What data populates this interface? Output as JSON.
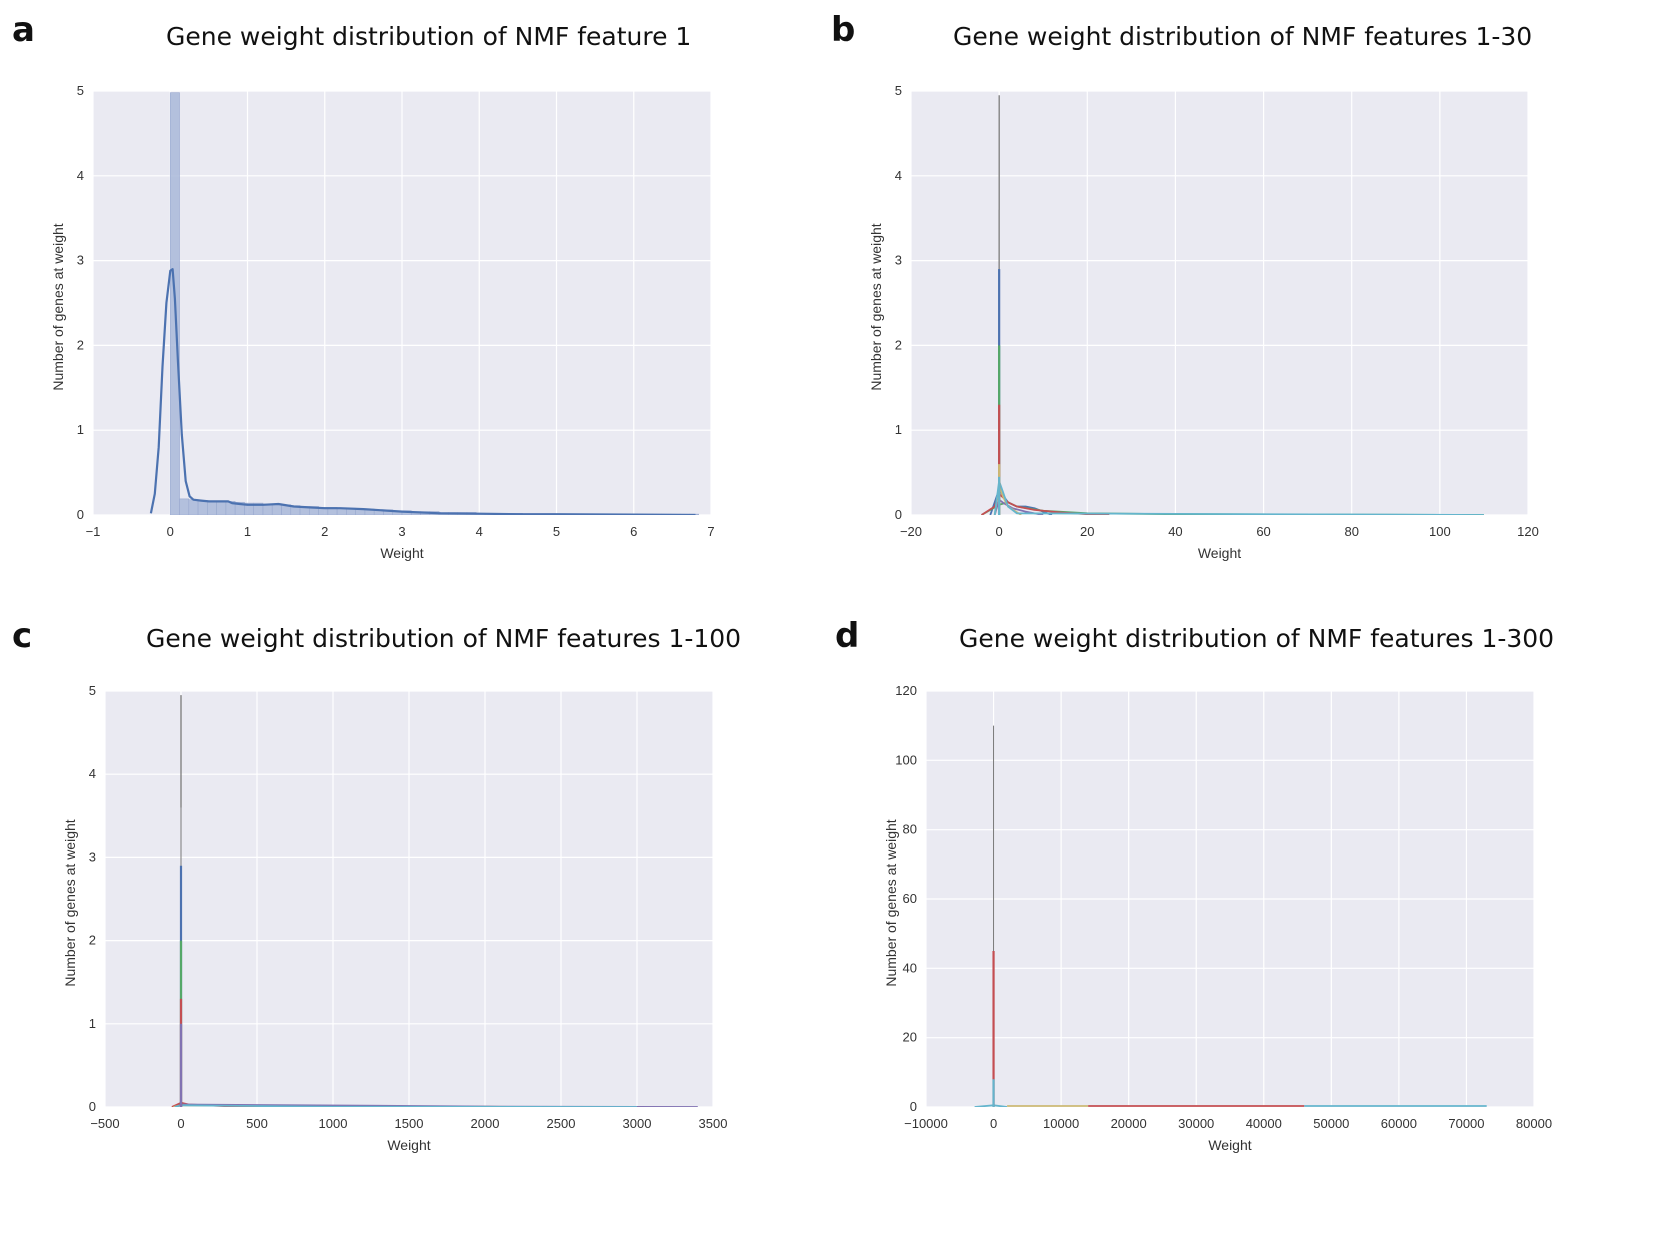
{
  "chart_data": [
    {
      "panel_letter": "a",
      "type": "histogram-kde",
      "title": "Gene weight distribution of NMF feature 1",
      "xlabel": "Weight",
      "ylabel": "Number of genes at weight",
      "xlim": [
        -1,
        7
      ],
      "ylim": [
        0,
        5
      ],
      "xticks": [
        -1,
        0,
        1,
        2,
        3,
        4,
        5,
        6,
        7
      ],
      "xtick_labels": [
        "−1",
        "0",
        "1",
        "2",
        "3",
        "4",
        "5",
        "6",
        "7"
      ],
      "yticks": [
        0,
        1,
        2,
        3,
        4,
        5
      ],
      "grid": true,
      "colors": {
        "background": "#eaeaf2",
        "hist": "#a9b8d9",
        "kde": "#4c72b0"
      },
      "histogram": {
        "bin_edges": [
          0.0,
          0.12,
          0.24,
          0.36,
          0.48,
          0.6,
          0.72,
          0.84,
          0.96,
          1.08,
          1.2,
          1.32,
          1.44,
          1.56,
          1.68,
          1.8,
          1.92,
          2.04,
          2.16,
          2.28,
          2.4,
          2.52,
          2.64,
          2.76,
          2.88,
          3.0,
          3.12,
          3.24,
          3.36,
          3.48,
          3.6,
          3.72,
          3.84,
          3.96,
          4.08,
          4.2,
          4.32,
          4.44,
          4.56,
          4.68,
          4.8,
          4.92,
          5.04,
          5.16,
          5.28,
          5.4,
          5.52,
          5.64,
          5.76,
          5.88,
          6.0,
          6.12,
          6.24,
          6.36,
          6.48,
          6.6,
          6.72,
          6.84
        ],
        "counts": [
          5.0,
          0.19,
          0.18,
          0.17,
          0.16,
          0.16,
          0.16,
          0.15,
          0.14,
          0.14,
          0.13,
          0.13,
          0.12,
          0.11,
          0.1,
          0.1,
          0.09,
          0.09,
          0.08,
          0.08,
          0.07,
          0.07,
          0.06,
          0.06,
          0.05,
          0.05,
          0.04,
          0.04,
          0.04,
          0.03,
          0.03,
          0.03,
          0.03,
          0.02,
          0.02,
          0.02,
          0.02,
          0.02,
          0.01,
          0.01,
          0.01,
          0.01,
          0.01,
          0.01,
          0.01,
          0.01,
          0.01,
          0.01,
          0.01,
          0.01,
          0.01,
          0.01,
          0.01,
          0.01,
          0.01,
          0.01,
          0.01
        ]
      },
      "kde": {
        "x": [
          -0.25,
          -0.2,
          -0.15,
          -0.1,
          -0.05,
          0.0,
          0.03,
          0.06,
          0.1,
          0.15,
          0.2,
          0.25,
          0.3,
          0.4,
          0.5,
          0.6,
          0.7,
          0.75,
          0.8,
          0.9,
          1.0,
          1.2,
          1.4,
          1.6,
          1.8,
          2.0,
          2.2,
          2.5,
          3.0,
          3.5,
          4.0,
          4.5,
          5.0,
          6.0,
          6.8
        ],
        "y": [
          0.02,
          0.25,
          0.8,
          1.75,
          2.5,
          2.88,
          2.9,
          2.55,
          1.8,
          0.95,
          0.4,
          0.22,
          0.18,
          0.17,
          0.16,
          0.16,
          0.16,
          0.16,
          0.14,
          0.13,
          0.12,
          0.12,
          0.13,
          0.1,
          0.09,
          0.08,
          0.08,
          0.07,
          0.04,
          0.02,
          0.015,
          0.01,
          0.01,
          0.005,
          0.0
        ]
      }
    },
    {
      "panel_letter": "b",
      "type": "histogram-kde-multi",
      "title": "Gene weight distribution of NMF features 1-30",
      "xlabel": "Weight",
      "ylabel": "Number of genes at weight",
      "xlim": [
        -20,
        120
      ],
      "ylim": [
        0,
        5
      ],
      "xticks": [
        -20,
        0,
        20,
        40,
        60,
        80,
        100,
        120
      ],
      "xtick_labels": [
        "−20",
        "0",
        "20",
        "40",
        "60",
        "80",
        "100",
        "120"
      ],
      "yticks": [
        0,
        1,
        2,
        3,
        4,
        5
      ],
      "grid": true,
      "colors": {
        "background": "#eaeaf2"
      },
      "spikes": [
        {
          "x": 0,
          "height": 4.95,
          "color": "#555555"
        },
        {
          "x": 0,
          "height": 3.6,
          "color": "#777777"
        },
        {
          "x": 0,
          "height": 2.9,
          "color": "#4c72b0"
        },
        {
          "x": 0,
          "height": 2.0,
          "color": "#55a868"
        },
        {
          "x": 0,
          "height": 1.3,
          "color": "#c44e52"
        },
        {
          "x": 0,
          "height": 0.6,
          "color": "#ccb974"
        },
        {
          "x": 0,
          "height": 0.45,
          "color": "#64b5cd"
        }
      ],
      "curves": [
        {
          "color": "#4c72b0",
          "x": [
            -2,
            0,
            1,
            2,
            4,
            6,
            8,
            10,
            12
          ],
          "y": [
            0,
            0.3,
            0.22,
            0.15,
            0.1,
            0.1,
            0.08,
            0.04,
            0
          ]
        },
        {
          "color": "#55a868",
          "x": [
            -4,
            0,
            2,
            4,
            10,
            20,
            40,
            80,
            110
          ],
          "y": [
            0,
            0.12,
            0.15,
            0.1,
            0.05,
            0.02,
            0.01,
            0.005,
            0
          ]
        },
        {
          "color": "#c44e52",
          "x": [
            -4,
            -1,
            0,
            1,
            2,
            4,
            8,
            14,
            20,
            25
          ],
          "y": [
            0,
            0.1,
            0.25,
            0.2,
            0.15,
            0.1,
            0.06,
            0.03,
            0.01,
            0
          ]
        },
        {
          "color": "#8172b2",
          "x": [
            -1,
            0,
            1,
            3,
            6,
            10
          ],
          "y": [
            0,
            0.18,
            0.14,
            0.08,
            0.04,
            0
          ]
        },
        {
          "color": "#ccb974",
          "x": [
            -1,
            0,
            1,
            2,
            5
          ],
          "y": [
            0,
            0.35,
            0.2,
            0.1,
            0
          ]
        },
        {
          "color": "#64b5cd",
          "x": [
            -1,
            0,
            1,
            2,
            4,
            110
          ],
          "y": [
            0,
            0.4,
            0.25,
            0.1,
            0.02,
            0
          ]
        }
      ]
    },
    {
      "panel_letter": "c",
      "type": "histogram-kde-multi",
      "title": "Gene weight distribution of NMF features 1-100",
      "xlabel": "Weight",
      "ylabel": "Number of genes at weight",
      "xlim": [
        -500,
        3500
      ],
      "ylim": [
        0,
        5
      ],
      "xticks": [
        -500,
        0,
        500,
        1000,
        1500,
        2000,
        2500,
        3000,
        3500
      ],
      "xtick_labels": [
        "−500",
        "0",
        "500",
        "1000",
        "1500",
        "2000",
        "2500",
        "3000",
        "3500"
      ],
      "yticks": [
        0,
        1,
        2,
        3,
        4,
        5
      ],
      "grid": true,
      "colors": {
        "background": "#eaeaf2"
      },
      "spikes": [
        {
          "x": 0,
          "height": 4.95,
          "color": "#555555"
        },
        {
          "x": 0,
          "height": 3.6,
          "color": "#777777"
        },
        {
          "x": 0,
          "height": 2.9,
          "color": "#4c72b0"
        },
        {
          "x": 0,
          "height": 2.0,
          "color": "#55a868"
        },
        {
          "x": 0,
          "height": 1.3,
          "color": "#c44e52"
        },
        {
          "x": 0,
          "height": 1.0,
          "color": "#8172b2"
        }
      ],
      "curves": [
        {
          "color": "#c44e52",
          "x": [
            -60,
            0,
            50,
            300,
            1300
          ],
          "y": [
            0,
            0.05,
            0.03,
            0.01,
            0
          ]
        },
        {
          "color": "#ccb974",
          "x": [
            -50,
            0,
            1300,
            2000,
            2200
          ],
          "y": [
            0,
            0.02,
            0.005,
            0.005,
            0
          ]
        },
        {
          "color": "#8172b2",
          "x": [
            -30,
            0,
            2100,
            3400
          ],
          "y": [
            0,
            0.03,
            0.005,
            0
          ]
        },
        {
          "color": "#64b5cd",
          "x": [
            -40,
            0,
            1000,
            3000
          ],
          "y": [
            0,
            0.02,
            0.003,
            0
          ]
        }
      ]
    },
    {
      "panel_letter": "d",
      "type": "histogram-kde-multi",
      "title": "Gene weight distribution of NMF features 1-300",
      "xlabel": "Weight",
      "ylabel": "Number of genes at weight",
      "xlim": [
        -10000,
        80000
      ],
      "ylim": [
        0,
        120
      ],
      "xticks": [
        -10000,
        0,
        10000,
        20000,
        30000,
        40000,
        50000,
        60000,
        70000,
        80000
      ],
      "xtick_labels": [
        "−10000",
        "0",
        "10000",
        "20000",
        "30000",
        "40000",
        "50000",
        "60000",
        "70000",
        "80000"
      ],
      "yticks": [
        0,
        20,
        40,
        60,
        80,
        100,
        120
      ],
      "grid": true,
      "colors": {
        "background": "#eaeaf2"
      },
      "spikes": [
        {
          "x": 0,
          "height": 110,
          "color": "#777777"
        },
        {
          "x": 0,
          "height": 45,
          "color": "#c44e52"
        },
        {
          "x": 0,
          "height": 8,
          "color": "#64b5cd"
        }
      ],
      "curves": [
        {
          "color": "#64b5cd",
          "x": [
            -2800,
            0,
            2000
          ],
          "y": [
            0,
            0.5,
            0
          ]
        },
        {
          "color": "#c44e52",
          "x": [
            14000,
            30000,
            46000
          ],
          "y": [
            0.3,
            0.3,
            0.3
          ]
        },
        {
          "color": "#ccb974",
          "x": [
            2000,
            8000,
            14000
          ],
          "y": [
            0.3,
            0.3,
            0.3
          ]
        },
        {
          "color": "#64b5cd",
          "x": [
            46000,
            60000,
            73000
          ],
          "y": [
            0.3,
            0.3,
            0.3
          ]
        }
      ]
    }
  ]
}
